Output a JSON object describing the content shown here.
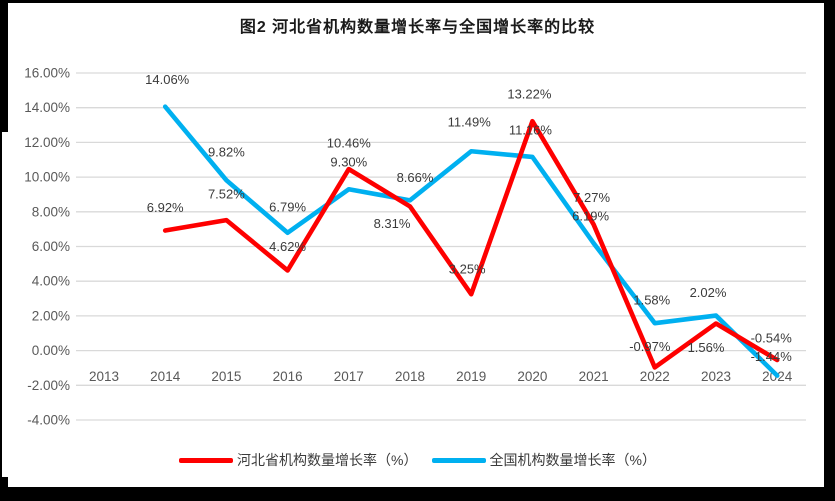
{
  "chart_data": {
    "type": "line",
    "title": "图2 河北省机构数量增长率与全国增长率的比较",
    "categories": [
      "2013",
      "2014",
      "2015",
      "2016",
      "2017",
      "2018",
      "2019",
      "2020",
      "2021",
      "2022",
      "2023",
      "2024"
    ],
    "series": [
      {
        "name": "河北省机构数量增长率（%）",
        "color": "#fe0000",
        "start_category": "2014",
        "values": [
          6.92,
          7.52,
          4.62,
          10.46,
          8.31,
          3.25,
          13.22,
          7.27,
          -0.97,
          1.56,
          -0.54
        ],
        "labels": [
          "6.92%",
          "7.52%",
          "4.62%",
          "10.46%",
          "8.31%",
          "3.25%",
          "13.22%",
          "7.27%",
          "-0.97%",
          "1.56%",
          "-0.54%"
        ]
      },
      {
        "name": "全国机构数量增长率（%）",
        "color": "#00b0f0",
        "start_category": "2014",
        "values": [
          14.06,
          9.82,
          6.79,
          9.3,
          8.66,
          11.49,
          11.16,
          6.19,
          1.58,
          2.02,
          -1.44
        ],
        "labels": [
          "14.06%",
          "9.82%",
          "6.79%",
          "9.30%",
          "8.66%",
          "11.49%",
          "11.16%",
          "6.19%",
          "1.58%",
          "2.02%",
          "-1.44%"
        ]
      }
    ],
    "y_ticks": [
      "16.00%",
      "14.00%",
      "12.00%",
      "10.00%",
      "8.00%",
      "6.00%",
      "4.00%",
      "2.00%",
      "0.00%",
      "-2.00%",
      "-4.00%"
    ],
    "ylim": [
      -4,
      16
    ],
    "ytick_step": 2,
    "grid": true,
    "legend_position": "bottom",
    "gridline_color": "#d9d9d9",
    "axis_label_color": "#595959",
    "data_label_color": "#3b3b3b"
  }
}
